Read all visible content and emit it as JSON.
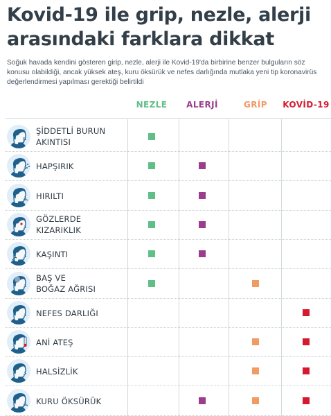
{
  "title": "Kovid-19 ile grip, nezle, alerji arasındaki farklara dikkat",
  "subtitle": "Soğuk havada kendini gösteren girip, nezle, alerji ile Kovid-19'da birbirine benzer bulguların söz konusu olabildiği, ancak yüksek ateş, kuru öksürük ve nefes darlığında mutlaka yeni tip koronavirüs değerlendirmesi yapılması gerektiği belirtildi",
  "columns": [
    {
      "label": "NEZLE",
      "color": "#5fbf86"
    },
    {
      "label": "ALERJİ",
      "color": "#9b3d8c"
    },
    {
      "label": "GRİP",
      "color": "#f29a64"
    },
    {
      "label": "KOVİD-19",
      "color": "#d7192f"
    }
  ],
  "rows": [
    {
      "label": "ŞİDDETLİ BURUN AKINTISI",
      "line1": "ŞİDDETLİ BURUN",
      "line2": "AKINTISI",
      "icon": "runny-nose-icon",
      "marks": [
        true,
        false,
        false,
        false
      ]
    },
    {
      "label": "HAPŞIRIK",
      "line1": "HAPŞIRIK",
      "line2": "",
      "icon": "sneeze-icon",
      "marks": [
        true,
        true,
        false,
        false
      ]
    },
    {
      "label": "HIRILTI",
      "line1": "HIRILTI",
      "line2": "",
      "icon": "wheeze-icon",
      "marks": [
        true,
        true,
        false,
        false
      ]
    },
    {
      "label": "GÖZLERDE KIZARIKLIK",
      "line1": "GÖZLERDE",
      "line2": "KIZARIKLIK",
      "icon": "red-eyes-icon",
      "marks": [
        true,
        true,
        false,
        false
      ]
    },
    {
      "label": "KAŞINTI",
      "line1": "KAŞINTI",
      "line2": "",
      "icon": "itch-icon",
      "marks": [
        true,
        true,
        false,
        false
      ]
    },
    {
      "label": "BAŞ VE BOĞAZ AĞRISI",
      "line1": "BAŞ VE",
      "line2": "BOĞAZ AĞRISI",
      "icon": "headache-icon",
      "marks": [
        true,
        false,
        true,
        false
      ]
    },
    {
      "label": "NEFES DARLIĞI",
      "line1": "NEFES DARLIĞI",
      "line2": "",
      "icon": "shortness-of-breath-icon",
      "marks": [
        false,
        false,
        false,
        true
      ]
    },
    {
      "label": "ANİ ATEŞ",
      "line1": "ANİ ATEŞ",
      "line2": "",
      "icon": "fever-icon",
      "marks": [
        false,
        false,
        true,
        true
      ]
    },
    {
      "label": "HALSİZLİK",
      "line1": "HALSİZLİK",
      "line2": "",
      "icon": "fatigue-icon",
      "marks": [
        false,
        false,
        true,
        true
      ]
    },
    {
      "label": "KURU ÖKSÜRÜK",
      "line1": "KURU ÖKSÜRÜK",
      "line2": "",
      "icon": "dry-cough-icon",
      "marks": [
        false,
        true,
        true,
        true
      ]
    }
  ]
}
